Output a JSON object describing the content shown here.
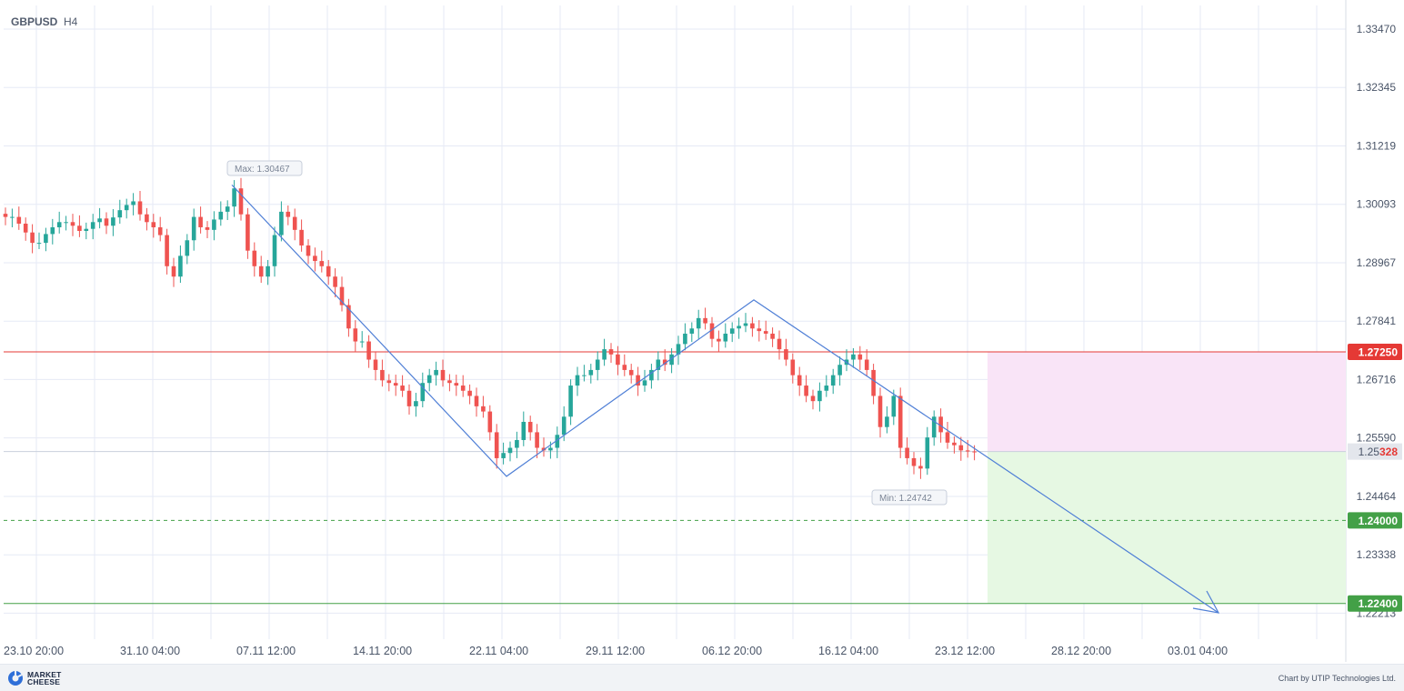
{
  "header": {
    "symbol": "GBPUSD",
    "timeframe": "H4"
  },
  "footer": {
    "brand": "MARKET CHEESE",
    "credit": "Chart by UTIP Technologies Ltd."
  },
  "colors": {
    "bull": "#26a69a",
    "bear": "#ef5350",
    "trend": "#4f7fd6",
    "resistance": "#e53935",
    "support": "#43a047",
    "grid": "#e6eaf5"
  },
  "chart_data": {
    "type": "candlestick",
    "symbol": "GBPUSD",
    "timeframe": "H4",
    "y_ticks": [
      1.3347,
      1.32345,
      1.31219,
      1.30093,
      1.28967,
      1.27841,
      1.26716,
      1.2559,
      1.24464,
      1.23338,
      1.22213
    ],
    "x_ticks": [
      "23.10 20:00",
      "31.10 04:00",
      "07.11 12:00",
      "14.11 20:00",
      "22.11 04:00",
      "29.11 12:00",
      "06.12 20:00",
      "16.12 04:00",
      "23.12 12:00",
      "28.12 20:00",
      "03.01 04:00"
    ],
    "ylim": [
      1.2213,
      1.3362
    ],
    "current_price": {
      "value": "1.25328",
      "prefix": "1.25",
      "suffix": "328"
    },
    "levels": [
      {
        "label": "1.27250",
        "value": 1.2725,
        "style": "solid",
        "color": "#e53935"
      },
      {
        "label": "1.24000",
        "value": 1.24,
        "style": "dashed",
        "color": "#43a047"
      },
      {
        "label": "1.22400",
        "value": 1.224,
        "style": "solid",
        "color": "#43a047"
      }
    ],
    "annotations": [
      {
        "text": "Max: 1.30467",
        "value": 1.30467
      },
      {
        "text": "Min: 1.24742",
        "value": 1.24742
      }
    ],
    "zigzag": [
      {
        "x": "05.11 08:00",
        "y": 1.30467
      },
      {
        "x": "22.11 04:00",
        "y": 1.2485
      },
      {
        "x": "09.12 12:00",
        "y": 1.2825
      },
      {
        "x": "02.01 16:00",
        "y": 1.2222
      }
    ],
    "zones": [
      {
        "kind": "risk",
        "from": 1.2725,
        "to": 1.25328,
        "color": "#f9e4f7"
      },
      {
        "kind": "target",
        "from": 1.25328,
        "to": 1.224,
        "color": "#e6f8e3"
      }
    ],
    "closes_approx": [
      1.2985,
      1.2985,
      1.2972,
      1.2955,
      1.2935,
      1.2935,
      1.2952,
      1.2965,
      1.2975,
      1.2975,
      1.2968,
      1.2958,
      1.2962,
      1.2975,
      1.2982,
      1.2968,
      1.2984,
      1.2998,
      1.3008,
      1.3015,
      1.299,
      1.2975,
      1.2965,
      1.295,
      1.289,
      1.287,
      1.291,
      1.294,
      1.2985,
      1.2965,
      1.296,
      1.298,
      1.2995,
      1.3005,
      1.304,
      1.299,
      1.292,
      1.289,
      1.287,
      1.289,
      1.295,
      1.2995,
      1.2985,
      1.296,
      1.293,
      1.291,
      1.29,
      1.289,
      1.287,
      1.285,
      1.2815,
      1.277,
      1.2745,
      1.2745,
      1.271,
      1.269,
      1.267,
      1.2665,
      1.266,
      1.265,
      1.262,
      1.263,
      1.2665,
      1.268,
      1.269,
      1.267,
      1.2665,
      1.266,
      1.265,
      1.264,
      1.262,
      1.261,
      1.257,
      1.252,
      1.253,
      1.254,
      1.2555,
      1.259,
      1.257,
      1.254,
      1.2535,
      1.254,
      1.2565,
      1.26,
      1.266,
      1.268,
      1.268,
      1.269,
      1.271,
      1.273,
      1.272,
      1.27,
      1.269,
      1.268,
      1.266,
      1.267,
      1.269,
      1.271,
      1.27,
      1.272,
      1.274,
      1.276,
      1.277,
      1.279,
      1.278,
      1.275,
      1.2745,
      1.276,
      1.277,
      1.2775,
      1.278,
      1.277,
      1.2765,
      1.276,
      1.275,
      1.273,
      1.271,
      1.268,
      1.266,
      1.264,
      1.263,
      1.265,
      1.266,
      1.268,
      1.27,
      1.271,
      1.272,
      1.271,
      1.269,
      1.264,
      1.258,
      1.26,
      1.264,
      1.254,
      1.252,
      1.2505,
      1.25,
      1.256,
      1.26,
      1.257,
      1.255,
      1.2545,
      1.2535,
      1.2533,
      1.2532
    ]
  }
}
